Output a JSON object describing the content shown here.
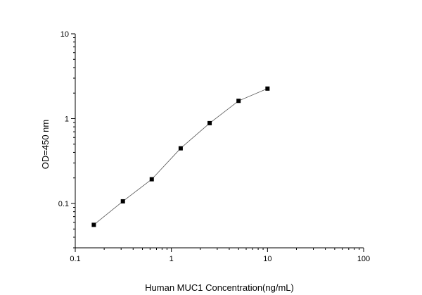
{
  "chart_data": {
    "type": "line",
    "xlabel": "Human MUC1  Concentration(ng/mL)",
    "ylabel": "OD=450 nm",
    "x_scale": "log",
    "y_scale": "log",
    "xlim": [
      0.1,
      100
    ],
    "ylim": [
      0.03,
      10
    ],
    "x_ticks": [
      "0.1",
      "1",
      "10",
      "100"
    ],
    "y_ticks": [
      "0.1",
      "1",
      "10"
    ],
    "grid": false,
    "series": [
      {
        "x": [
          0.156,
          0.313,
          0.625,
          1.25,
          2.5,
          5,
          10
        ],
        "y": [
          0.056,
          0.106,
          0.193,
          0.447,
          0.885,
          1.62,
          2.26
        ],
        "marker": "square",
        "color": "#000000",
        "line_color": "#555555"
      }
    ]
  }
}
